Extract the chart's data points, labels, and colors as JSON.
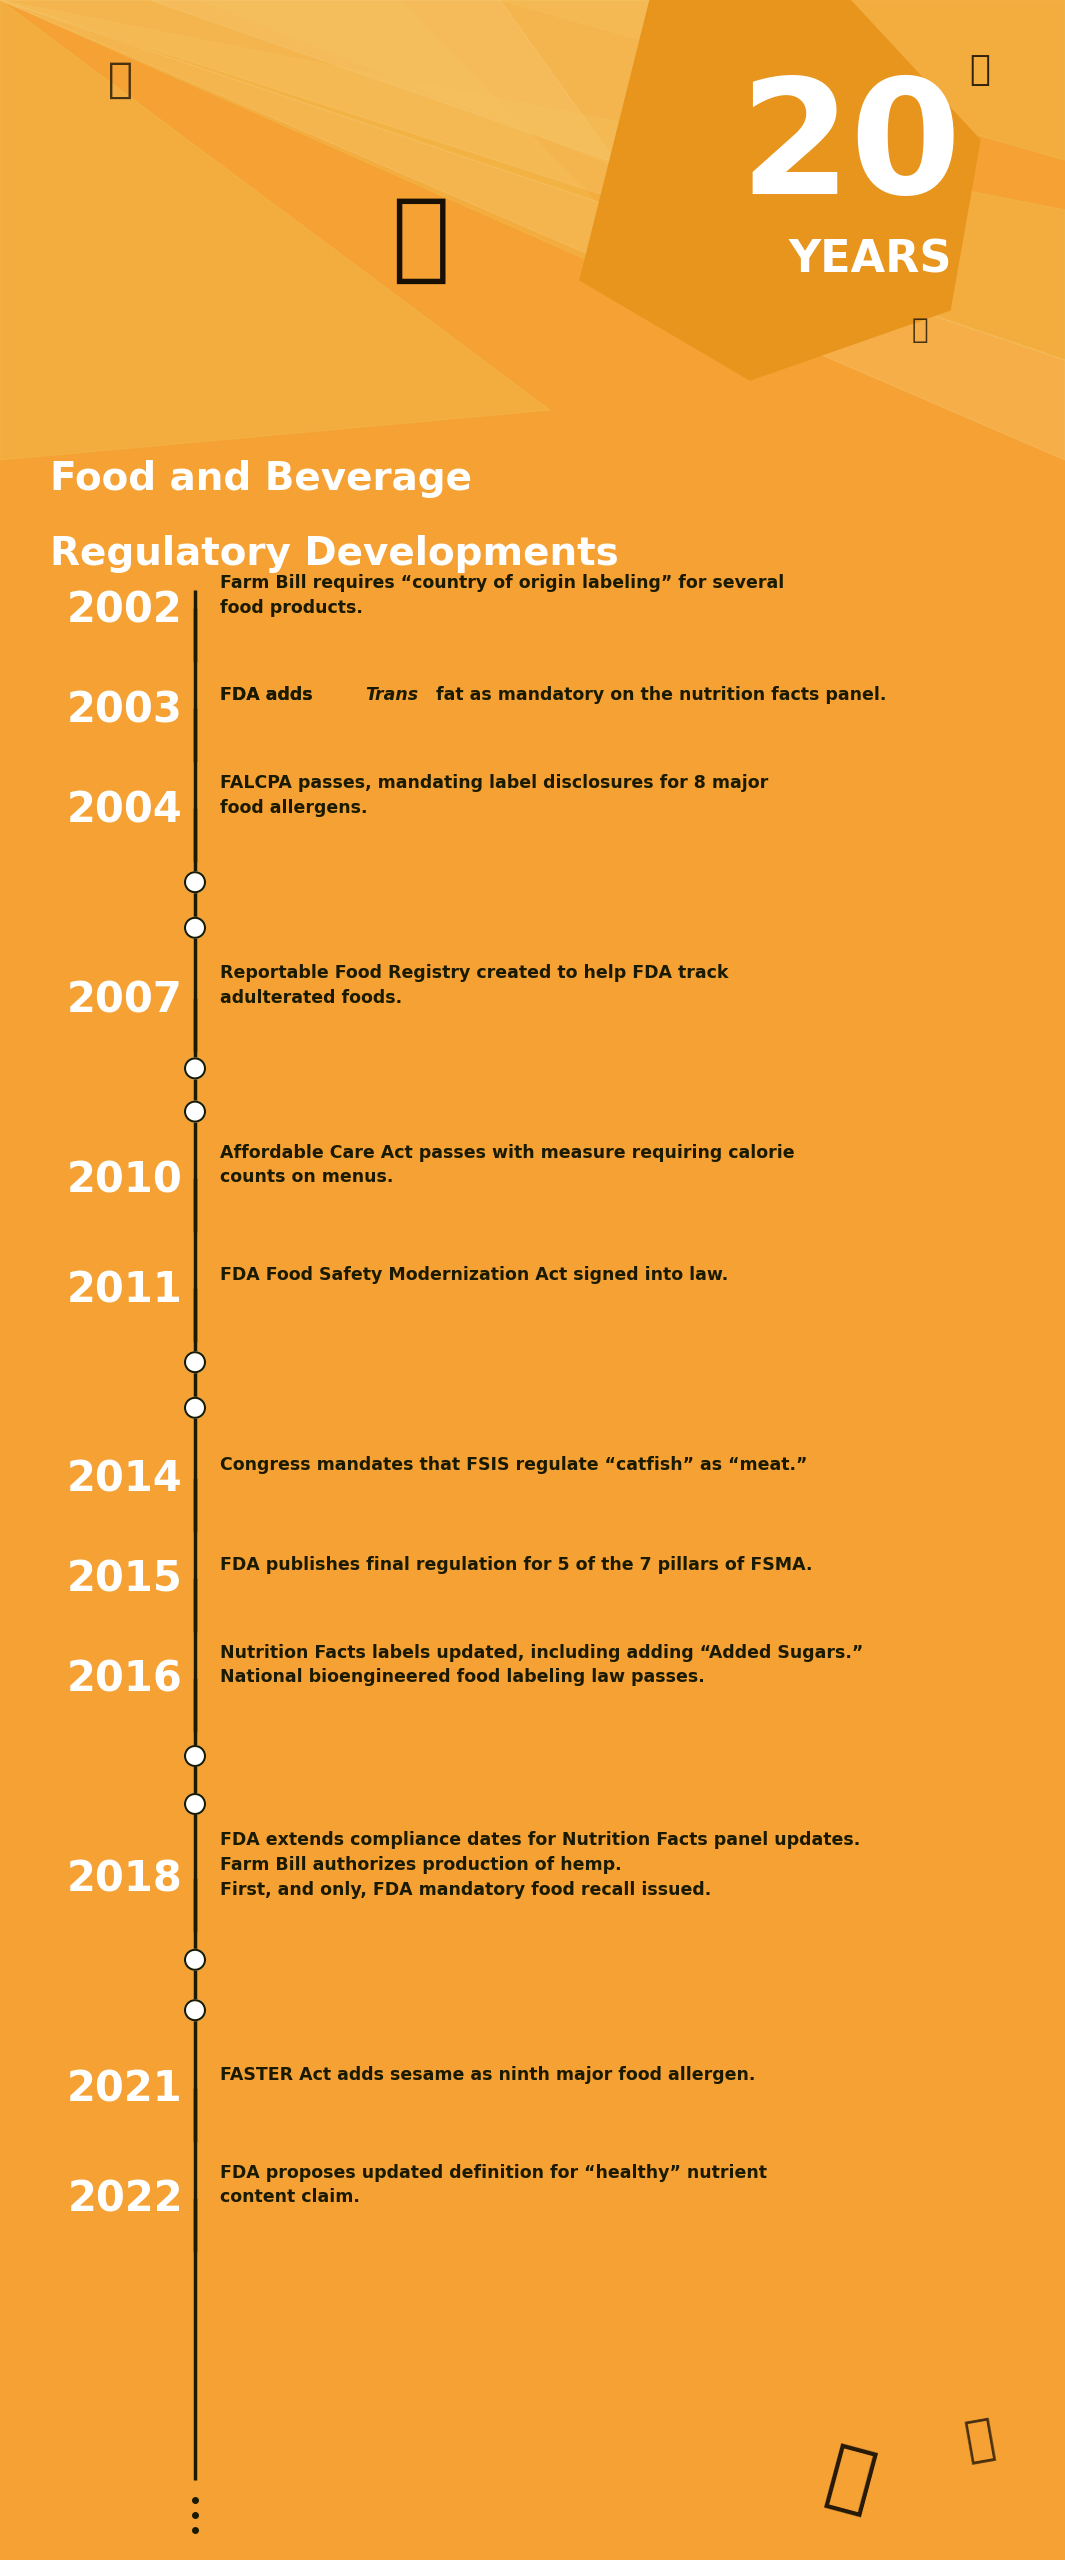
{
  "bg_color": "#F5A133",
  "title_line1": "Food and Beverage",
  "title_line2": "Regulatory Developments",
  "big_number": "20",
  "big_number_sub": "YEARS",
  "events": [
    {
      "year": "2002",
      "text": "Farm Bill requires “country of origin labeling” for several\nfood products.",
      "dots_before": 0,
      "italic_word": null
    },
    {
      "year": "2003",
      "text": "FDA adds Trans fat as mandatory on the nutrition facts panel.",
      "dots_before": 0,
      "italic_word": "Trans"
    },
    {
      "year": "2004",
      "text": "FALCPA passes, mandating label disclosures for 8 major\nfood allergens.",
      "dots_before": 0,
      "italic_word": null
    },
    {
      "year": "2007",
      "text": "Reportable Food Registry created to help FDA track\nadulterated foods.",
      "dots_before": 2,
      "italic_word": null
    },
    {
      "year": "2010",
      "text": "Affordable Care Act passes with measure requiring calorie\ncounts on menus.",
      "dots_before": 2,
      "italic_word": null
    },
    {
      "year": "2011",
      "text": "FDA Food Safety Modernization Act signed into law.",
      "dots_before": 0,
      "italic_word": null
    },
    {
      "year": "2014",
      "text": "Congress mandates that FSIS regulate “catfish” as “meat.”",
      "dots_before": 2,
      "italic_word": null
    },
    {
      "year": "2015",
      "text": "FDA publishes final regulation for 5 of the 7 pillars of FSMA.",
      "dots_before": 0,
      "italic_word": null
    },
    {
      "year": "2016",
      "text": "Nutrition Facts labels updated, including adding “Added Sugars.”\nNational bioengineered food labeling law passes.",
      "dots_before": 0,
      "italic_word": null
    },
    {
      "year": "2018",
      "text": "FDA extends compliance dates for Nutrition Facts panel updates.\nFarm Bill authorizes production of hemp.\nFirst, and only, FDA mandatory food recall issued.",
      "dots_before": 2,
      "italic_word": null
    },
    {
      "year": "2021",
      "text": "FASTER Act adds sesame as ninth major food allergen.",
      "dots_before": 2,
      "italic_word": null
    },
    {
      "year": "2022",
      "text": "FDA proposes updated definition for “healthy” nutrient\ncontent claim.",
      "dots_before": 0,
      "italic_word": null
    }
  ],
  "year_color": "#FFFFFF",
  "text_color": "#1a1a00",
  "line_color": "#1a1a00",
  "dot_color": "#FFFFFF",
  "dot_edge_color": "#1a1a00"
}
